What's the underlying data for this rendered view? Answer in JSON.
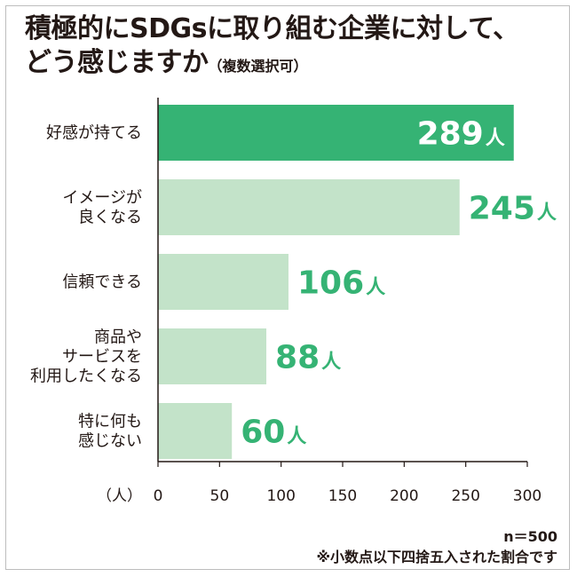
{
  "title_line1": "積極的にSDGsに取り組む企業に対して、",
  "title_line2_main": "どう感じますか",
  "title_line2_sub": "（複数選択可）",
  "footnote_n": "n＝500",
  "footnote_rounding": "※小数点以下四捨五入された割合です",
  "colors": {
    "highlight_bar": "#35b374",
    "bar": "#c3e3c9",
    "value_text": "#35b374",
    "axis": "#231815"
  },
  "chart_data": {
    "type": "bar",
    "orientation": "horizontal",
    "categories": [
      [
        "好感が持てる"
      ],
      [
        "イメージが",
        "良くなる"
      ],
      [
        "信頼できる"
      ],
      [
        "商品や",
        "サービスを",
        "利用したくなる"
      ],
      [
        "特に何も",
        "感じない"
      ]
    ],
    "values": [
      289,
      245,
      106,
      88,
      60
    ],
    "value_labels": [
      "289",
      "245",
      "106",
      "88",
      "60"
    ],
    "value_unit": "人",
    "highlight_index": 0,
    "xlabel": "（人）",
    "xlim": [
      0,
      300
    ],
    "xticks": [
      "0",
      "50",
      "100",
      "150",
      "200",
      "250",
      "300"
    ],
    "grid": false
  }
}
